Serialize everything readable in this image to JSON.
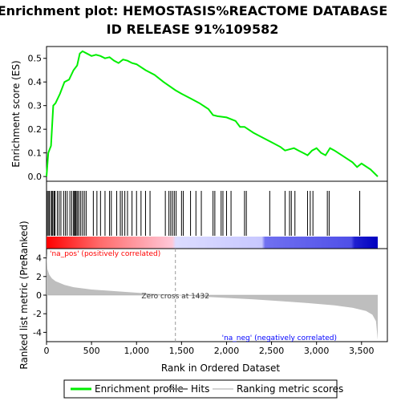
{
  "chart_data": {
    "type": "line",
    "title_line1": "Enrichment plot: HEMOSTASIS%REACTOME DATABASE",
    "title_line2": "ID RELEASE 91%109582",
    "es_panel": {
      "ylabel": "Enrichment score (ES)",
      "ylim": [
        -0.02,
        0.55
      ],
      "yticks": [
        "0.0",
        "0.1",
        "0.2",
        "0.3",
        "0.4",
        "0.5"
      ],
      "ytick_values": [
        0.0,
        0.1,
        0.2,
        0.3,
        0.4,
        0.5
      ],
      "line_color": "#00ee00",
      "series": [
        {
          "name": "Enrichment profile",
          "x": [
            0,
            20,
            50,
            75,
            100,
            150,
            200,
            250,
            300,
            340,
            370,
            400,
            450,
            500,
            550,
            600,
            650,
            700,
            750,
            800,
            850,
            900,
            950,
            1000,
            1100,
            1200,
            1300,
            1432,
            1500,
            1600,
            1700,
            1800,
            1850,
            1900,
            2000,
            2100,
            2150,
            2200,
            2300,
            2400,
            2500,
            2600,
            2650,
            2700,
            2750,
            2800,
            2850,
            2900,
            2950,
            3000,
            3050,
            3100,
            3150,
            3200,
            3300,
            3400,
            3450,
            3500,
            3600,
            3680
          ],
          "y": [
            0.0,
            0.1,
            0.13,
            0.3,
            0.31,
            0.35,
            0.4,
            0.41,
            0.45,
            0.47,
            0.52,
            0.53,
            0.52,
            0.51,
            0.515,
            0.51,
            0.5,
            0.505,
            0.49,
            0.48,
            0.495,
            0.49,
            0.48,
            0.475,
            0.45,
            0.43,
            0.4,
            0.365,
            0.35,
            0.33,
            0.31,
            0.285,
            0.26,
            0.255,
            0.25,
            0.235,
            0.21,
            0.21,
            0.185,
            0.165,
            0.145,
            0.125,
            0.11,
            0.115,
            0.12,
            0.11,
            0.1,
            0.09,
            0.11,
            0.12,
            0.1,
            0.09,
            0.12,
            0.11,
            0.085,
            0.06,
            0.04,
            0.055,
            0.03,
            0.0
          ]
        }
      ]
    },
    "hits_panel": {
      "hit_color": "#000000",
      "hit_positions": [
        10,
        25,
        35,
        55,
        60,
        70,
        85,
        95,
        120,
        140,
        160,
        190,
        210,
        230,
        260,
        280,
        300,
        310,
        320,
        330,
        345,
        360,
        380,
        400,
        420,
        440,
        520,
        560,
        600,
        650,
        700,
        720,
        780,
        820,
        840,
        870,
        900,
        950,
        1000,
        1050,
        1100,
        1150,
        1320,
        1360,
        1380,
        1400,
        1420,
        1440,
        1500,
        1520,
        1600,
        1660,
        1720,
        1850,
        1870,
        1940,
        1960,
        2000,
        2050,
        2200,
        2220,
        2480,
        2650,
        2700,
        2720,
        2760,
        2900,
        2930,
        2960,
        3120,
        3140,
        3480
      ]
    },
    "ranked_panel": {
      "ylabel": "Ranked list metric (PreRanked)",
      "ylim": [
        -5,
        5
      ],
      "yticks": [
        "-4",
        "-2",
        "0",
        "2",
        "4"
      ],
      "ytick_values": [
        -4,
        -2,
        0,
        2,
        4
      ],
      "fill_color": "#bebebe",
      "metric_x": [
        0,
        10,
        30,
        60,
        100,
        200,
        300,
        500,
        800,
        1100,
        1300,
        1432,
        1700,
        2000,
        2300,
        2600,
        2900,
        3200,
        3400,
        3550,
        3620,
        3660,
        3680
      ],
      "metric_y": [
        4.5,
        2.8,
        2.2,
        1.8,
        1.5,
        1.1,
        0.85,
        0.6,
        0.4,
        0.2,
        0.08,
        0.0,
        -0.15,
        -0.3,
        -0.45,
        -0.65,
        -0.85,
        -1.1,
        -1.35,
        -1.7,
        -2.1,
        -2.8,
        -4.8
      ],
      "zero_cross_label": "Zero cross at 1432",
      "zero_cross_x": 1432,
      "pos_label": "'na_pos' (positively correlated)",
      "neg_label": "'na_neg' (negatively correlated)",
      "pos_color": "#ff0000",
      "neg_color": "#0000ff"
    },
    "x_axis": {
      "label": "Rank in Ordered Dataset",
      "xlim": [
        0,
        3680
      ],
      "ticks": [
        "0",
        "500",
        "1,000",
        "1,500",
        "2,000",
        "2,500",
        "3,000",
        "3,500"
      ],
      "tick_values": [
        0,
        500,
        1000,
        1500,
        2000,
        2500,
        3000,
        3500
      ]
    },
    "legend": {
      "items": [
        {
          "label": "Enrichment profile",
          "color": "#00ee00"
        },
        {
          "label": "Hits",
          "color": "#808080"
        },
        {
          "label": "Ranking metric scores",
          "color": "#d3d3d3"
        }
      ]
    }
  }
}
